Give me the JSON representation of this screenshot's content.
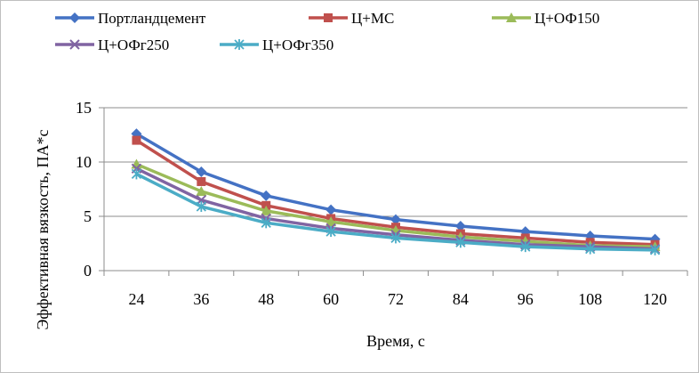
{
  "chart_data": {
    "type": "line",
    "xlabel": "Время, с",
    "ylabel": "Эффективная вязкость, ПА*с",
    "categories": [
      "24",
      "36",
      "48",
      "60",
      "72",
      "84",
      "96",
      "108",
      "120"
    ],
    "ylim": [
      0,
      15
    ],
    "yticks": [
      "0",
      "5",
      "10",
      "15"
    ],
    "grid": true,
    "legend_position": "top",
    "series": [
      {
        "name": "Портландцемент",
        "color": "#4472c4",
        "marker": "diamond",
        "values": [
          12.6,
          9.1,
          6.9,
          5.6,
          4.7,
          4.1,
          3.6,
          3.2,
          2.9
        ]
      },
      {
        "name": "Ц+МС",
        "color": "#c0504d",
        "marker": "square",
        "values": [
          12.0,
          8.2,
          6.0,
          4.8,
          4.0,
          3.4,
          3.0,
          2.6,
          2.4
        ]
      },
      {
        "name": "Ц+ОФ150",
        "color": "#9bbb59",
        "marker": "triangle",
        "values": [
          9.8,
          7.3,
          5.5,
          4.5,
          3.7,
          3.1,
          2.7,
          2.3,
          2.2
        ]
      },
      {
        "name": "Ц+ОФг250",
        "color": "#8064a2",
        "marker": "x",
        "values": [
          9.4,
          6.5,
          4.8,
          3.9,
          3.3,
          2.8,
          2.4,
          2.2,
          2.0
        ]
      },
      {
        "name": "Ц+ОФг350",
        "color": "#4bacc6",
        "marker": "star",
        "values": [
          8.9,
          5.9,
          4.4,
          3.6,
          3.0,
          2.6,
          2.2,
          2.0,
          1.9
        ]
      }
    ]
  }
}
